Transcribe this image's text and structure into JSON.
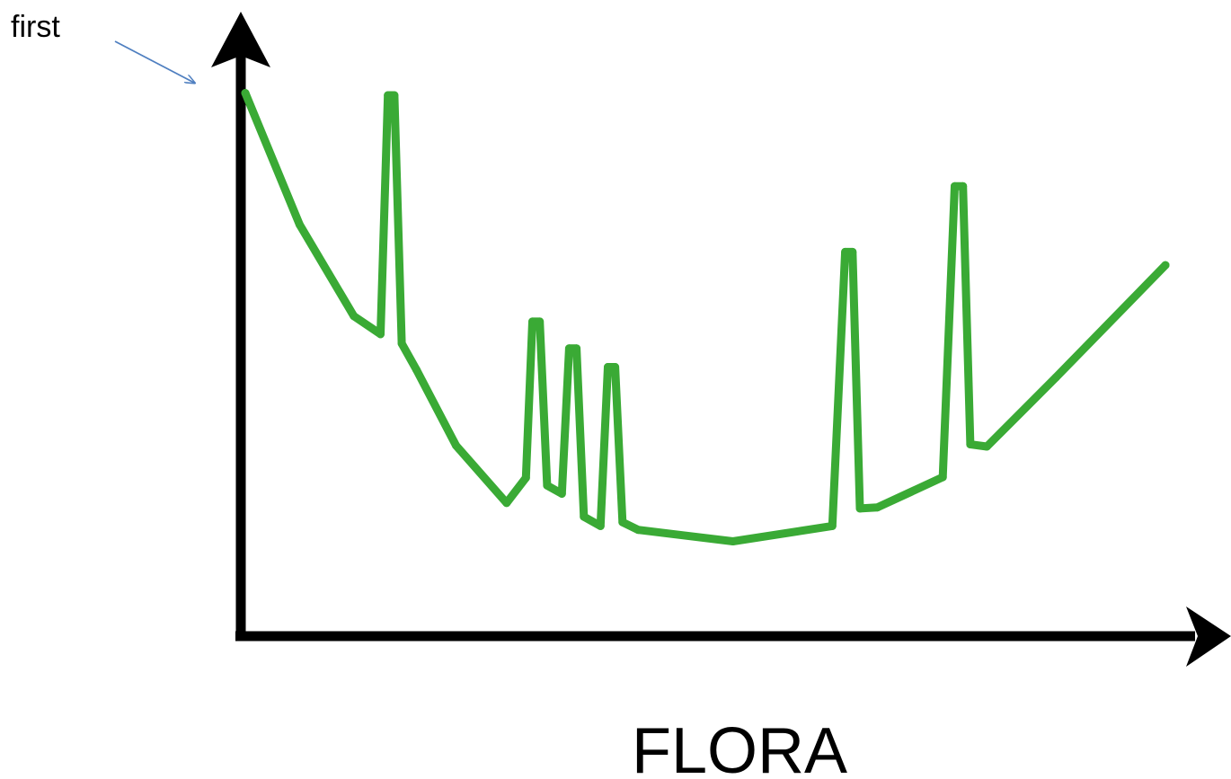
{
  "chart_data": {
    "type": "line",
    "title": "",
    "xlabel": "FLORA",
    "ylabel": "",
    "grid": false,
    "legend": "none",
    "annotation": {
      "text": "first"
    },
    "colors": {
      "line": "#3aaa35",
      "axes": "#000000",
      "annotation_arrow": "#4f7fc0"
    },
    "xlim": [
      0,
      100
    ],
    "ylim": [
      0,
      100
    ],
    "series": [
      {
        "name": "",
        "x": [
          0.0,
          5.9,
          11.8,
          14.7,
          15.5,
          16.2,
          17.0,
          18.6,
          22.9,
          28.4,
          30.5,
          31.2,
          32.0,
          32.8,
          34.4,
          35.2,
          36.0,
          36.8,
          38.6,
          39.4,
          40.2,
          41.0,
          42.7,
          53.0,
          63.8,
          65.2,
          66.0,
          66.8,
          68.7,
          75.8,
          77.1,
          78.0,
          78.8,
          80.6,
          88.1,
          100.0
        ],
        "y": [
          98.6,
          74.6,
          57.9,
          54.6,
          98.2,
          98.2,
          52.9,
          48.1,
          34.3,
          23.8,
          28.4,
          56.9,
          56.9,
          27.0,
          25.5,
          52.0,
          52.0,
          21.3,
          19.6,
          48.6,
          48.6,
          20.3,
          18.9,
          16.8,
          19.6,
          69.6,
          69.6,
          22.8,
          23.0,
          28.5,
          81.6,
          81.6,
          34.5,
          34.1,
          46.7,
          67.2
        ]
      }
    ]
  }
}
